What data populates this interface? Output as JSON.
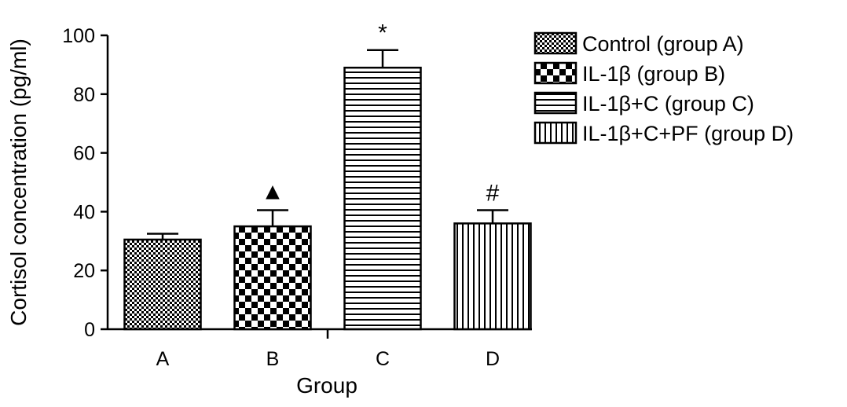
{
  "chart_data": {
    "type": "bar",
    "categories": [
      "A",
      "B",
      "C",
      "D"
    ],
    "values": [
      30.5,
      35,
      89,
      36
    ],
    "errors": [
      2,
      5.5,
      6,
      4.5
    ],
    "annotations": [
      "",
      "▲",
      "*",
      "#"
    ],
    "legend": [
      "Control (group A)",
      "IL-1β (group B)",
      "IL-1β+C (group C)",
      "IL-1β+C+PF (group D)"
    ],
    "patterns": [
      "fine-checker",
      "coarse-checker",
      "horizontal-lines",
      "vertical-lines"
    ],
    "xlabel": "Group",
    "ylabel": "Cortisol concentration (pg/ml)",
    "ylim": [
      0,
      100
    ],
    "yticks": [
      0,
      20,
      40,
      60,
      80,
      100
    ],
    "legend_position": "right",
    "grid": false
  }
}
